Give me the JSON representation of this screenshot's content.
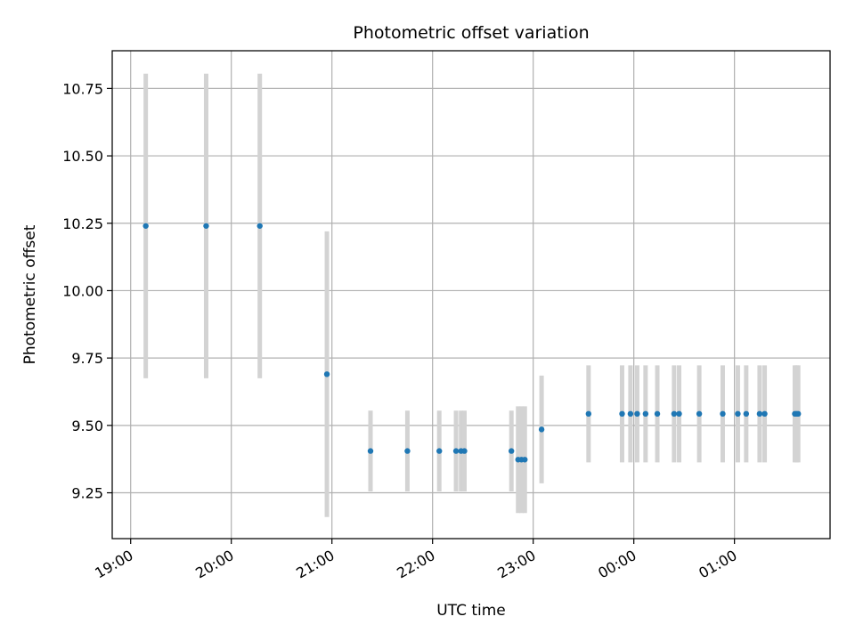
{
  "chart_data": {
    "type": "scatter",
    "title": "Photometric offset variation",
    "xlabel": "UTC time",
    "ylabel": "Photometric offset",
    "x_tick_labels": [
      "19:00",
      "20:00",
      "21:00",
      "22:00",
      "23:00",
      "00:00",
      "01:00"
    ],
    "x_tick_times": [
      "19:00",
      "20:00",
      "21:00",
      "22:00",
      "23:00",
      "00:00",
      "01:00"
    ],
    "y_ticks": [
      9.25,
      9.5,
      9.75,
      10.0,
      10.25,
      10.5,
      10.75
    ],
    "y_tick_labels": [
      "9.25",
      "9.50",
      "9.75",
      "10.00",
      "10.25",
      "10.50",
      "10.75"
    ],
    "xlim": [
      "18:49",
      "01:57"
    ],
    "ylim": [
      9.08,
      10.89
    ],
    "grid": true,
    "colors": {
      "point": "#1f77b4",
      "errorbar": "#d3d3d3",
      "grid": "#b0b0b0"
    },
    "points": [
      {
        "time": "19:09",
        "y": 10.24,
        "err": 0.565
      },
      {
        "time": "19:45",
        "y": 10.24,
        "err": 0.565
      },
      {
        "time": "20:17",
        "y": 10.24,
        "err": 0.565
      },
      {
        "time": "20:57",
        "y": 9.69,
        "err": 0.53
      },
      {
        "time": "21:23",
        "y": 9.405,
        "err": 0.15
      },
      {
        "time": "21:45",
        "y": 9.405,
        "err": 0.15
      },
      {
        "time": "22:04",
        "y": 9.405,
        "err": 0.15
      },
      {
        "time": "22:14",
        "y": 9.405,
        "err": 0.15
      },
      {
        "time": "22:17",
        "y": 9.405,
        "err": 0.15
      },
      {
        "time": "22:19",
        "y": 9.405,
        "err": 0.15
      },
      {
        "time": "22:47",
        "y": 9.405,
        "err": 0.15
      },
      {
        "time": "22:51",
        "y": 9.373,
        "err": 0.198
      },
      {
        "time": "22:53",
        "y": 9.373,
        "err": 0.198
      },
      {
        "time": "22:55",
        "y": 9.373,
        "err": 0.198
      },
      {
        "time": "23:05",
        "y": 9.485,
        "err": 0.2
      },
      {
        "time": "23:33",
        "y": 9.543,
        "err": 0.18
      },
      {
        "time": "23:53",
        "y": 9.543,
        "err": 0.18
      },
      {
        "time": "23:58",
        "y": 9.543,
        "err": 0.18
      },
      {
        "time": "00:02",
        "y": 9.543,
        "err": 0.18
      },
      {
        "time": "00:07",
        "y": 9.543,
        "err": 0.18
      },
      {
        "time": "00:14",
        "y": 9.543,
        "err": 0.18
      },
      {
        "time": "00:24",
        "y": 9.543,
        "err": 0.18
      },
      {
        "time": "00:27",
        "y": 9.543,
        "err": 0.18
      },
      {
        "time": "00:39",
        "y": 9.543,
        "err": 0.18
      },
      {
        "time": "00:53",
        "y": 9.543,
        "err": 0.18
      },
      {
        "time": "01:02",
        "y": 9.543,
        "err": 0.18
      },
      {
        "time": "01:07",
        "y": 9.543,
        "err": 0.18
      },
      {
        "time": "01:15",
        "y": 9.543,
        "err": 0.18
      },
      {
        "time": "01:18",
        "y": 9.543,
        "err": 0.18
      },
      {
        "time": "01:36",
        "y": 9.543,
        "err": 0.18
      },
      {
        "time": "01:37",
        "y": 9.543,
        "err": 0.18
      },
      {
        "time": "01:38",
        "y": 9.543,
        "err": 0.18
      }
    ]
  }
}
